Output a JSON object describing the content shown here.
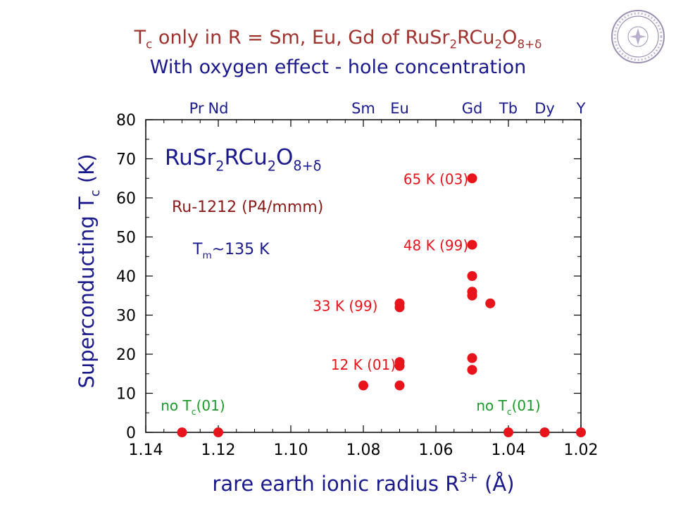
{
  "slide": {
    "title_line1": {
      "parts": [
        "T",
        "c",
        " only in R = Sm, Eu, Gd of RuSr",
        "2",
        "RCu",
        "2",
        "O",
        "8+δ"
      ]
    },
    "title_line2": "With oxygen effect - hole concentration"
  },
  "chart_data": {
    "type": "scatter",
    "xlabel": "rare earth ionic radius R",
    "xlabel_sup": "3+",
    "xlabel_unit": "(Å)",
    "ylabel": "Superconducting  T",
    "ylabel_sub": "c",
    "ylabel_unit": "(K)",
    "xlim": [
      1.14,
      1.02
    ],
    "ylim": [
      0,
      80
    ],
    "x_inverted": true,
    "xticks": [
      "1.14",
      "1.12",
      "1.10",
      "1.08",
      "1.06",
      "1.04",
      "1.02"
    ],
    "yticks": [
      "0",
      "10",
      "20",
      "30",
      "40",
      "50",
      "60",
      "70",
      "80"
    ],
    "grid": false,
    "top_labels": [
      {
        "text": "Pr",
        "x": 1.126
      },
      {
        "text": "Nd",
        "x": 1.12
      },
      {
        "text": "Sm",
        "x": 1.08
      },
      {
        "text": "Eu",
        "x": 1.07
      },
      {
        "text": "Gd",
        "x": 1.05
      },
      {
        "text": "Tb",
        "x": 1.04
      },
      {
        "text": "Dy",
        "x": 1.03
      },
      {
        "text": "Y",
        "x": 1.02
      }
    ],
    "series": [
      {
        "color": "#e8141c",
        "points": [
          [
            1.13,
            0
          ],
          [
            1.12,
            0
          ],
          [
            1.08,
            12
          ],
          [
            1.07,
            12
          ],
          [
            1.07,
            17
          ],
          [
            1.07,
            18
          ],
          [
            1.07,
            32
          ],
          [
            1.07,
            33
          ],
          [
            1.05,
            16
          ],
          [
            1.05,
            19
          ],
          [
            1.05,
            35
          ],
          [
            1.05,
            36
          ],
          [
            1.05,
            40
          ],
          [
            1.05,
            48
          ],
          [
            1.05,
            65
          ],
          [
            1.045,
            33
          ],
          [
            1.04,
            0
          ],
          [
            1.03,
            0
          ],
          [
            1.02,
            0
          ]
        ]
      }
    ],
    "annotations": [
      {
        "text": "65 K (03)",
        "x": 1.06,
        "y": 65,
        "color": "#e8141c"
      },
      {
        "text": "48 K (99)",
        "x": 1.06,
        "y": 48,
        "color": "#e8141c"
      },
      {
        "text": "33 K (99)",
        "x": 1.085,
        "y": 32.5,
        "color": "#e8141c"
      },
      {
        "text": "12 K (01)",
        "x": 1.08,
        "y": 17.5,
        "color": "#e8141c"
      },
      {
        "text": "no T",
        "sub": "c",
        "rest": "(01)",
        "x": 1.127,
        "y": 7,
        "color": "#1a9a2a"
      },
      {
        "text": "no T",
        "sub": "c",
        "rest": "(01)",
        "x": 1.04,
        "y": 7,
        "color": "#1a9a2a"
      }
    ],
    "formula": {
      "parts": [
        "RuSr",
        "2",
        "RCu",
        "2",
        "O",
        "8+δ"
      ],
      "color": "#1a1a8c"
    },
    "phase": {
      "text": "Ru-1212 (P4/mmm)",
      "color": "#8b1a1a"
    },
    "tm": {
      "text": "T",
      "sub": "m",
      "rest": "~135 K",
      "color": "#1a1a8c"
    },
    "colors": {
      "axis": "#000000",
      "title_red": "#a0322e",
      "title_blue": "#1a1a8c",
      "label_blue": "#1a1a8c",
      "top_blue": "#1a1a8c"
    }
  }
}
